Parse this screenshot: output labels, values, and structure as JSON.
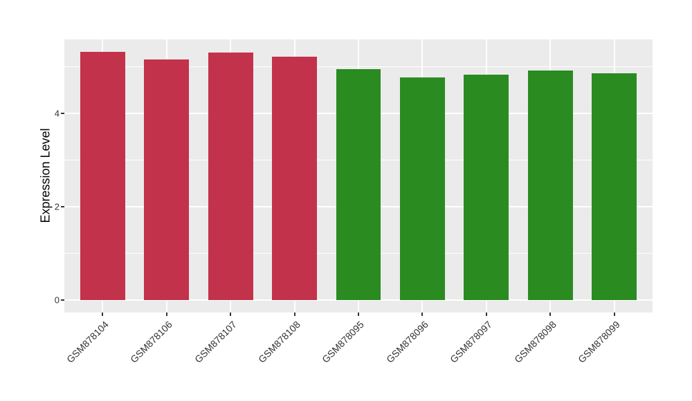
{
  "figure": {
    "background": "#FFFFFF",
    "panel_background": "#EBEBEB",
    "gridline_color": "#FFFFFF",
    "axis_text_color": "#333333",
    "axis_title_color": "#000000"
  },
  "chart_data": {
    "type": "bar",
    "title": "",
    "xlabel": "",
    "ylabel": "Expression Level",
    "legend": "none",
    "grid": "on",
    "categories": [
      "GSM878104",
      "GSM878106",
      "GSM878107",
      "GSM878108",
      "GSM878095",
      "GSM878096",
      "GSM878097",
      "GSM878098",
      "GSM878099"
    ],
    "series": [
      {
        "name": "Expression Level",
        "values": [
          5.32,
          5.16,
          5.31,
          5.22,
          4.95,
          4.78,
          4.83,
          4.92,
          4.87
        ]
      }
    ],
    "bar_colors": [
      "#C3324B",
      "#C3324B",
      "#C3324B",
      "#C3324B",
      "#2A8B21",
      "#2A8B21",
      "#2A8B21",
      "#2A8B21",
      "#2A8B21"
    ],
    "group_colors": {
      "red_group": "#C3324B",
      "green_group": "#2A8B21"
    },
    "yticks": [
      0,
      2,
      4
    ],
    "ytick_labels": [
      "0",
      "2",
      "4"
    ],
    "yticks_minor": [
      1,
      3,
      5
    ],
    "ylim": [
      0,
      5.59
    ],
    "panel_range": [
      -0.26,
      5.59
    ],
    "x_label_angle": 45
  }
}
